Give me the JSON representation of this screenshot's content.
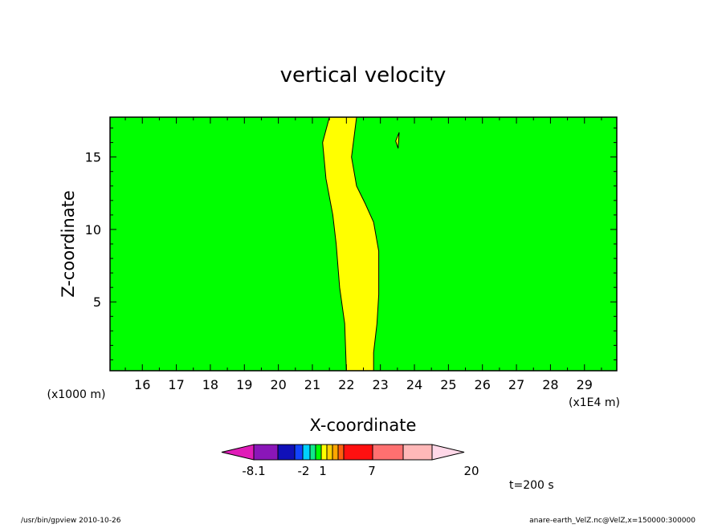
{
  "chart_data": {
    "type": "heatmap",
    "title": "vertical velocity",
    "xlabel": "X-coordinate",
    "ylabel": "Z-coordinate",
    "x_unit": "(x1E4 m)",
    "y_unit": "(x1000 m)",
    "xlim": [
      15.05,
      29.95
    ],
    "ylim": [
      0.25,
      17.75
    ],
    "x_ticks": [
      16,
      17,
      18,
      19,
      20,
      21,
      22,
      23,
      24,
      25,
      26,
      27,
      28,
      29
    ],
    "y_ticks": [
      5,
      10,
      15
    ],
    "background_color": "#00ff00",
    "band": {
      "color": "#ffff00",
      "left_edge": [
        [
          21.5,
          17.75
        ],
        [
          21.3,
          16.0
        ],
        [
          21.4,
          13.5
        ],
        [
          21.6,
          11.0
        ],
        [
          21.7,
          9.0
        ],
        [
          21.8,
          6.0
        ],
        [
          21.95,
          3.5
        ],
        [
          22.0,
          0.25
        ]
      ],
      "right_edge": [
        [
          22.8,
          0.25
        ],
        [
          22.8,
          1.5
        ],
        [
          22.9,
          3.5
        ],
        [
          22.95,
          5.5
        ],
        [
          22.95,
          8.5
        ],
        [
          22.8,
          10.5
        ],
        [
          22.55,
          11.8
        ],
        [
          22.3,
          13.0
        ],
        [
          22.15,
          15.0
        ],
        [
          22.3,
          17.75
        ]
      ]
    },
    "small_contour": [
      [
        23.45,
        16.1
      ],
      [
        23.55,
        16.7
      ],
      [
        23.52,
        15.6
      ]
    ],
    "colorbar": {
      "tick_labels": [
        "-8.1",
        "-2",
        "1",
        "7",
        "20"
      ],
      "colors": [
        "#e01cb8",
        "#8a16b8",
        "#1010b8",
        "#1244ff",
        "#00d0ff",
        "#10e88a",
        "#00ff00",
        "#ffff00",
        "#ffd000",
        "#ffa800",
        "#ff6010",
        "#ff1010",
        "#ff7070",
        "#ffb8b8",
        "#ffd8e8"
      ]
    },
    "time_label": "t=200 s"
  },
  "footer": {
    "left": "/usr/bin/gpview  2010-10-26",
    "right": "anare-earth_VelZ.nc@VelZ,x=150000:300000"
  }
}
